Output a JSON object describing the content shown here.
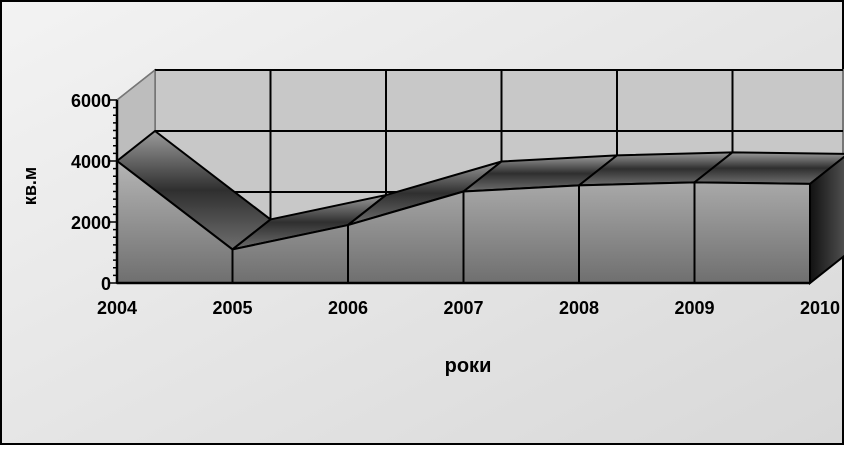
{
  "chart_data": {
    "type": "area",
    "categories": [
      "2004",
      "2005",
      "2006",
      "2007",
      "2008",
      "2009",
      "2010"
    ],
    "series": [
      {
        "values": [
          4000,
          1100,
          1900,
          3000,
          3200,
          3300,
          3250
        ]
      }
    ],
    "xlabel": "роки",
    "ylabel": "кв.м",
    "ylim": [
      0,
      6000
    ],
    "yticks": [
      "0",
      "2000",
      "4000",
      "6000"
    ],
    "grid": true,
    "legend": "none",
    "style": "3d",
    "colors": {
      "plot_background": "#c8c8c8",
      "area_front_top": "#b5b5b5",
      "area_front_bottom": "#6f6f6f",
      "ribbon_dark": "#2a2a2a",
      "ribbon_light": "#8a8a8a"
    }
  }
}
